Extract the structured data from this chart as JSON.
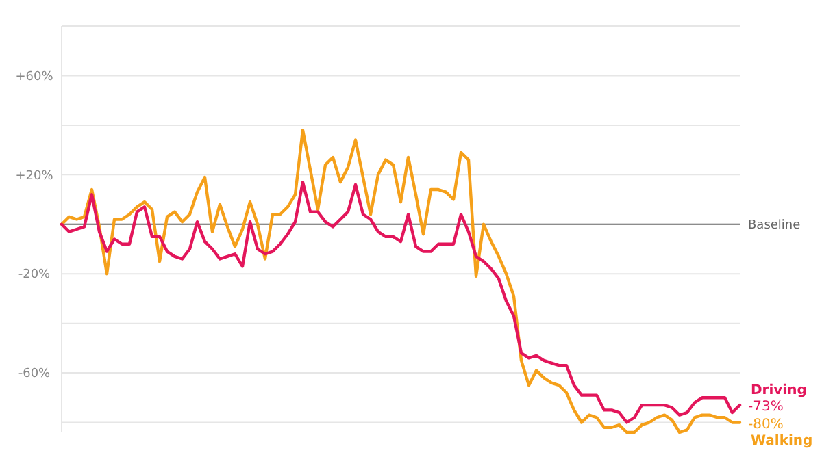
{
  "chart_data": {
    "type": "line",
    "categories": [
      null,
      null,
      null,
      null,
      null,
      null,
      null,
      null,
      null,
      null,
      null,
      null,
      null,
      null,
      null,
      null,
      null,
      null,
      null,
      null,
      null,
      null,
      null,
      null,
      null,
      null,
      null,
      null,
      null,
      null,
      null,
      null,
      null,
      null,
      null,
      null,
      null,
      null,
      null,
      null,
      null,
      null,
      null,
      null,
      null,
      null,
      null,
      null,
      null,
      null,
      null,
      null,
      null,
      null,
      null,
      null,
      null,
      null,
      null,
      null,
      null,
      null,
      null,
      null,
      null,
      null,
      null,
      null,
      null,
      null,
      null,
      null,
      null,
      null,
      null,
      null,
      null,
      null,
      null,
      null,
      null,
      null,
      null,
      null,
      null,
      null,
      null,
      null,
      null,
      null,
      null
    ],
    "series": [
      {
        "name": "Walking",
        "color": "#f5a01a",
        "values": [
          0,
          3,
          2,
          3,
          14,
          -1,
          -20,
          2,
          2,
          4,
          7,
          9,
          6,
          -15,
          3,
          5,
          1,
          4,
          13,
          19,
          -3,
          8,
          -1,
          -9,
          -2,
          9,
          0,
          -14,
          4,
          4,
          7,
          12,
          38,
          22,
          6,
          24,
          27,
          17,
          23,
          34,
          19,
          4,
          20,
          26,
          24,
          9,
          27,
          12,
          -4,
          14,
          14,
          13,
          10,
          29,
          26,
          -21,
          0,
          -7,
          -13,
          -20,
          -29,
          -55,
          -65,
          -59,
          -62,
          -64,
          -65,
          -68,
          -75,
          -80,
          -77,
          -78,
          -82,
          -82,
          -81,
          -84,
          -84,
          -81,
          -80,
          -78,
          -77,
          -79,
          -84,
          -83,
          -78,
          -77,
          -77,
          -78,
          -78,
          -80,
          -80
        ],
        "value_labels": [
          null,
          null,
          null,
          null,
          null,
          null,
          null,
          null,
          null,
          null,
          null,
          null,
          null,
          null,
          null,
          null,
          null,
          null,
          null,
          null,
          null,
          null,
          null,
          null,
          null,
          null,
          null,
          null,
          null,
          null,
          null,
          null,
          null,
          null,
          null,
          null,
          null,
          null,
          null,
          null,
          null,
          null,
          null,
          null,
          null,
          null,
          null,
          null,
          null,
          null,
          null,
          null,
          null,
          null,
          null,
          null,
          null,
          null,
          null,
          null,
          null,
          null,
          null,
          null,
          null,
          null,
          null,
          null,
          null,
          null,
          null,
          null,
          null,
          null,
          null,
          null,
          null,
          null,
          null,
          null,
          null,
          null,
          null,
          null,
          null,
          null,
          null,
          null,
          null,
          null,
          "-80%"
        ]
      },
      {
        "name": "Driving",
        "color": "#e3165b",
        "values": [
          0,
          -3,
          -2,
          -1,
          12,
          -3,
          -11,
          -6,
          -8,
          -8,
          5,
          7,
          -5,
          -5,
          -11,
          -13,
          -14,
          -10,
          1,
          -7,
          -10,
          -14,
          -13,
          -12,
          -17,
          1,
          -10,
          -12,
          -11,
          -8,
          -4,
          1,
          17,
          5,
          5,
          1,
          -1,
          2,
          5,
          16,
          4,
          2,
          -3,
          -5,
          -5,
          -7,
          4,
          -9,
          -11,
          -11,
          -8,
          -8,
          -8,
          4,
          -3,
          -13,
          -15,
          -18,
          -22,
          -31,
          -37,
          -52,
          -54,
          -53,
          -55,
          -56,
          -57,
          -57,
          -65,
          -69,
          -69,
          -69,
          -75,
          -75,
          -76,
          -80,
          -78,
          -73,
          -73,
          -73,
          -73,
          -74,
          -77,
          -76,
          -72,
          -70,
          -70,
          -70,
          -70,
          -76,
          -73
        ],
        "value_labels": [
          null,
          null,
          null,
          null,
          null,
          null,
          null,
          null,
          null,
          null,
          null,
          null,
          null,
          null,
          null,
          null,
          null,
          null,
          null,
          null,
          null,
          null,
          null,
          null,
          null,
          null,
          null,
          null,
          null,
          null,
          null,
          null,
          null,
          null,
          null,
          null,
          null,
          null,
          null,
          null,
          null,
          null,
          null,
          null,
          null,
          null,
          null,
          null,
          null,
          null,
          null,
          null,
          null,
          null,
          null,
          null,
          null,
          null,
          null,
          null,
          null,
          null,
          null,
          null,
          null,
          null,
          null,
          null,
          null,
          null,
          null,
          null,
          null,
          null,
          null,
          null,
          null,
          null,
          null,
          null,
          null,
          null,
          null,
          null,
          null,
          null,
          null,
          null,
          null,
          null,
          "-73%"
        ]
      }
    ],
    "ylim": [
      -84,
      80
    ],
    "yticks": [
      {
        "value": -80,
        "label": null
      },
      {
        "value": -60,
        "label": "-60%"
      },
      {
        "value": -40,
        "label": null
      },
      {
        "value": -20,
        "label": "-20%"
      },
      {
        "value": 20,
        "label": "+20%"
      },
      {
        "value": 40,
        "label": null
      },
      {
        "value": 60,
        "label": "+60%"
      },
      {
        "value": 80,
        "label": null
      }
    ],
    "ref_lines": [
      {
        "axis": "y",
        "value": 0,
        "label": "Baseline",
        "color": "#666666"
      }
    ],
    "grid": "y",
    "legend": false,
    "line_style": "solid",
    "tick_labels": "y",
    "marker": "none"
  }
}
